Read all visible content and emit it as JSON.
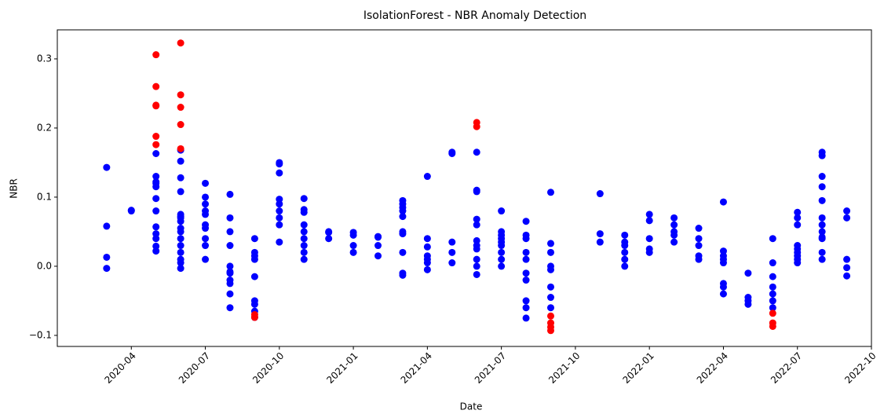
{
  "chart_data": {
    "type": "scatter",
    "title": "IsolationForest - NBR Anomaly Detection",
    "x_label": "Date",
    "y_label": "NBR",
    "xlim": [
      "2020-01",
      "2022-10"
    ],
    "ylim": [
      -0.116,
      0.342
    ],
    "xticks": [
      "2020-04",
      "2020-07",
      "2020-10",
      "2021-01",
      "2021-04",
      "2021-07",
      "2021-10",
      "2022-01",
      "2022-04",
      "2022-07",
      "2022-10"
    ],
    "yticks": [
      {
        "value": -0.1,
        "label": "−0.1"
      },
      {
        "value": 0,
        "label": "0.0"
      },
      0.1,
      0.2,
      0.3
    ],
    "series": [
      {
        "color": "#0000ff",
        "x": [
          "2020-03",
          "2020-03",
          "2020-03",
          "2020-03",
          "2020-04",
          "2020-04",
          "2020-05",
          "2020-05",
          "2020-05",
          "2020-05",
          "2020-05",
          "2020-05",
          "2020-05",
          "2020-05",
          "2020-05",
          "2020-05",
          "2020-05",
          "2020-05",
          "2020-06",
          "2020-06",
          "2020-06",
          "2020-06",
          "2020-06",
          "2020-06",
          "2020-06",
          "2020-06",
          "2020-06",
          "2020-06",
          "2020-06",
          "2020-06",
          "2020-06",
          "2020-06",
          "2020-06",
          "2020-06",
          "2020-07",
          "2020-07",
          "2020-07",
          "2020-07",
          "2020-07",
          "2020-07",
          "2020-07",
          "2020-07",
          "2020-07",
          "2020-07",
          "2020-08",
          "2020-08",
          "2020-08",
          "2020-08",
          "2020-08",
          "2020-08",
          "2020-08",
          "2020-08",
          "2020-08",
          "2020-08",
          "2020-08",
          "2020-09",
          "2020-09",
          "2020-09",
          "2020-09",
          "2020-09",
          "2020-09",
          "2020-09",
          "2020-09",
          "2020-09",
          "2020-10",
          "2020-10",
          "2020-10",
          "2020-10",
          "2020-10",
          "2020-10",
          "2020-10",
          "2020-10",
          "2020-10",
          "2020-11",
          "2020-11",
          "2020-11",
          "2020-11",
          "2020-11",
          "2020-11",
          "2020-11",
          "2020-11",
          "2020-11",
          "2020-12",
          "2020-12",
          "2020-12",
          "2021-01",
          "2021-01",
          "2021-01",
          "2021-01",
          "2021-02",
          "2021-02",
          "2021-02",
          "2021-02",
          "2021-03",
          "2021-03",
          "2021-03",
          "2021-03",
          "2021-03",
          "2021-03",
          "2021-03",
          "2021-03",
          "2021-03",
          "2021-03",
          "2021-04",
          "2021-04",
          "2021-04",
          "2021-04",
          "2021-04",
          "2021-04",
          "2021-04",
          "2021-05",
          "2021-05",
          "2021-05",
          "2021-05",
          "2021-05",
          "2021-06",
          "2021-06",
          "2021-06",
          "2021-06",
          "2021-06",
          "2021-06",
          "2021-06",
          "2021-06",
          "2021-06",
          "2021-06",
          "2021-06",
          "2021-07",
          "2021-07",
          "2021-07",
          "2021-07",
          "2021-07",
          "2021-07",
          "2021-07",
          "2021-07",
          "2021-07",
          "2021-08",
          "2021-08",
          "2021-08",
          "2021-08",
          "2021-08",
          "2021-08",
          "2021-08",
          "2021-08",
          "2021-08",
          "2021-08",
          "2021-09",
          "2021-09",
          "2021-09",
          "2021-09",
          "2021-09",
          "2021-09",
          "2021-09",
          "2021-09",
          "2021-11",
          "2021-11",
          "2021-11",
          "2021-12",
          "2021-12",
          "2021-12",
          "2021-12",
          "2021-12",
          "2021-12",
          "2022-01",
          "2022-01",
          "2022-01",
          "2022-01",
          "2022-01",
          "2022-02",
          "2022-02",
          "2022-02",
          "2022-02",
          "2022-02",
          "2022-03",
          "2022-03",
          "2022-03",
          "2022-03",
          "2022-03",
          "2022-04",
          "2022-04",
          "2022-04",
          "2022-04",
          "2022-04",
          "2022-04",
          "2022-04",
          "2022-04",
          "2022-05",
          "2022-05",
          "2022-05",
          "2022-05",
          "2022-06",
          "2022-06",
          "2022-06",
          "2022-06",
          "2022-06",
          "2022-06",
          "2022-06",
          "2022-07",
          "2022-07",
          "2022-07",
          "2022-07",
          "2022-07",
          "2022-07",
          "2022-07",
          "2022-07",
          "2022-07",
          "2022-08",
          "2022-08",
          "2022-08",
          "2022-08",
          "2022-08",
          "2022-08",
          "2022-08",
          "2022-08",
          "2022-08",
          "2022-08",
          "2022-08",
          "2022-08",
          "2022-09",
          "2022-09",
          "2022-09",
          "2022-09",
          "2022-09"
        ],
        "values": [
          0.143,
          0.058,
          0.013,
          -0.003,
          0.081,
          0.08,
          0.122,
          0.08,
          0.057,
          0.047,
          0.04,
          0.022,
          0.029,
          0.163,
          0.13,
          0.115,
          0.098,
          0.12,
          0.168,
          0.152,
          0.128,
          0.108,
          0.075,
          0.07,
          0.065,
          0.04,
          0.03,
          0.02,
          0.005,
          0.072,
          0.055,
          0.05,
          0.01,
          -0.003,
          0.12,
          0.08,
          0.06,
          0.04,
          0.03,
          0.01,
          0.09,
          0.1,
          0.075,
          0.055,
          0.104,
          0.07,
          0.05,
          0.03,
          0.0,
          -0.01,
          -0.02,
          -0.025,
          -0.008,
          -0.04,
          -0.06,
          -0.055,
          -0.065,
          -0.074,
          0.015,
          0.01,
          -0.015,
          0.02,
          0.04,
          -0.05,
          0.15,
          0.148,
          0.09,
          0.08,
          0.06,
          0.035,
          0.097,
          0.135,
          0.07,
          0.06,
          0.04,
          0.03,
          0.01,
          0.082,
          0.05,
          0.098,
          0.078,
          0.02,
          0.05,
          0.04,
          0.049,
          0.049,
          0.045,
          0.02,
          0.03,
          0.043,
          0.042,
          0.015,
          0.03,
          0.09,
          0.085,
          0.05,
          0.047,
          -0.01,
          -0.013,
          0.02,
          0.08,
          0.095,
          0.072,
          0.13,
          0.04,
          0.028,
          0.015,
          0.005,
          -0.005,
          0.01,
          0.035,
          0.02,
          0.005,
          0.165,
          0.163,
          0.165,
          0.11,
          0.108,
          0.068,
          0.06,
          0.037,
          0.025,
          0.01,
          -0.012,
          0.0,
          0.03,
          0.03,
          0.02,
          0.01,
          0.0,
          0.04,
          0.05,
          0.08,
          0.035,
          0.045,
          0.045,
          0.04,
          0.02,
          0.01,
          -0.02,
          -0.01,
          0.065,
          -0.05,
          -0.06,
          -0.075,
          -0.03,
          -0.045,
          -0.06,
          0.0,
          0.033,
          0.02,
          0.107,
          -0.005,
          0.105,
          0.047,
          0.035,
          0.035,
          0.02,
          0.0,
          0.045,
          0.03,
          0.01,
          0.075,
          0.04,
          0.025,
          0.02,
          0.066,
          0.07,
          0.06,
          0.05,
          0.035,
          0.045,
          0.04,
          0.01,
          0.055,
          0.03,
          0.015,
          0.093,
          0.015,
          0.01,
          0.005,
          -0.025,
          0.022,
          -0.03,
          -0.04,
          -0.045,
          -0.05,
          -0.01,
          -0.055,
          -0.03,
          -0.05,
          -0.06,
          0.005,
          -0.04,
          -0.015,
          0.04,
          0.078,
          0.07,
          0.06,
          0.03,
          0.02,
          0.01,
          0.005,
          0.025,
          0.015,
          0.02,
          0.04,
          0.042,
          0.01,
          0.165,
          0.16,
          0.13,
          0.115,
          0.095,
          0.07,
          0.05,
          0.06,
          0.08,
          0.01,
          -0.002,
          -0.014,
          0.07
        ]
      },
      {
        "color": "#ff0000",
        "x": [
          "2020-05",
          "2020-05",
          "2020-05",
          "2020-05",
          "2020-05",
          "2020-05",
          "2020-06",
          "2020-06",
          "2020-06",
          "2020-06",
          "2020-06",
          "2020-09",
          "2020-09",
          "2021-06",
          "2021-06",
          "2021-09",
          "2021-09",
          "2021-09",
          "2021-09",
          "2022-06",
          "2022-06",
          "2022-06"
        ],
        "values": [
          0.188,
          0.176,
          0.26,
          0.306,
          0.233,
          0.232,
          0.323,
          0.248,
          0.205,
          0.23,
          0.17,
          -0.074,
          -0.07,
          0.208,
          0.202,
          -0.088,
          -0.093,
          -0.082,
          -0.072,
          -0.087,
          -0.082,
          -0.068
        ]
      }
    ]
  }
}
